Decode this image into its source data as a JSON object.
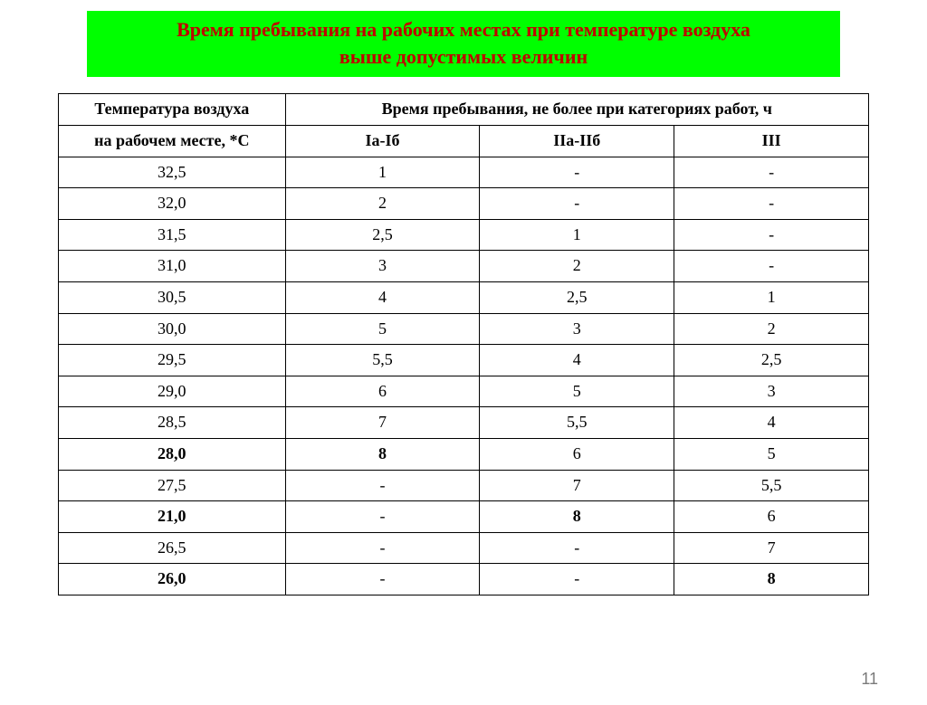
{
  "title": {
    "line1": "Время пребывания на рабочих местах при температуре воздуха",
    "line2": "выше допустимых величин",
    "background_color": "#00ff00",
    "text_color": "#c00000",
    "font_size": 22
  },
  "table": {
    "border_color": "#000000",
    "header": {
      "col1_row1": "Температура воздуха",
      "col_span_row1": "Время пребывания, не более при категориях работ, ч",
      "col1_row2": "на рабочем месте, *С",
      "col2_row2": "Iа-Iб",
      "col3_row2": "IIа-IIб",
      "col4_row2": "III"
    },
    "column_widths_pct": [
      28,
      24,
      24,
      24
    ],
    "rows": [
      {
        "temp": "32,5",
        "c1": "1",
        "c2": "-",
        "c3": "-",
        "bold_temp": false,
        "bold_c1": false,
        "bold_c2": false,
        "bold_c3": false
      },
      {
        "temp": "32,0",
        "c1": "2",
        "c2": "-",
        "c3": "-",
        "bold_temp": false,
        "bold_c1": false,
        "bold_c2": false,
        "bold_c3": false
      },
      {
        "temp": "31,5",
        "c1": "2,5",
        "c2": "1",
        "c3": "-",
        "bold_temp": false,
        "bold_c1": false,
        "bold_c2": false,
        "bold_c3": false
      },
      {
        "temp": "31,0",
        "c1": "3",
        "c2": "2",
        "c3": "-",
        "bold_temp": false,
        "bold_c1": false,
        "bold_c2": false,
        "bold_c3": false
      },
      {
        "temp": "30,5",
        "c1": "4",
        "c2": "2,5",
        "c3": "1",
        "bold_temp": false,
        "bold_c1": false,
        "bold_c2": false,
        "bold_c3": false
      },
      {
        "temp": "30,0",
        "c1": "5",
        "c2": "3",
        "c3": "2",
        "bold_temp": false,
        "bold_c1": false,
        "bold_c2": false,
        "bold_c3": false
      },
      {
        "temp": "29,5",
        "c1": "5,5",
        "c2": "4",
        "c3": "2,5",
        "bold_temp": false,
        "bold_c1": false,
        "bold_c2": false,
        "bold_c3": false
      },
      {
        "temp": "29,0",
        "c1": "6",
        "c2": "5",
        "c3": "3",
        "bold_temp": false,
        "bold_c1": false,
        "bold_c2": false,
        "bold_c3": false
      },
      {
        "temp": "28,5",
        "c1": "7",
        "c2": "5,5",
        "c3": "4",
        "bold_temp": false,
        "bold_c1": false,
        "bold_c2": false,
        "bold_c3": false
      },
      {
        "temp": "28,0",
        "c1": "8",
        "c2": "6",
        "c3": "5",
        "bold_temp": true,
        "bold_c1": true,
        "bold_c2": false,
        "bold_c3": false
      },
      {
        "temp": "27,5",
        "c1": "-",
        "c2": "7",
        "c3": "5,5",
        "bold_temp": false,
        "bold_c1": false,
        "bold_c2": false,
        "bold_c3": false
      },
      {
        "temp": "21,0",
        "c1": "-",
        "c2": "8",
        "c3": "6",
        "bold_temp": true,
        "bold_c1": false,
        "bold_c2": true,
        "bold_c3": false
      },
      {
        "temp": "26,5",
        "c1": "-",
        "c2": "-",
        "c3": "7",
        "bold_temp": false,
        "bold_c1": false,
        "bold_c2": false,
        "bold_c3": false
      },
      {
        "temp": "26,0",
        "c1": "-",
        "c2": "-",
        "c3": "8",
        "bold_temp": true,
        "bold_c1": false,
        "bold_c2": false,
        "bold_c3": true
      }
    ]
  },
  "page_number": "11"
}
